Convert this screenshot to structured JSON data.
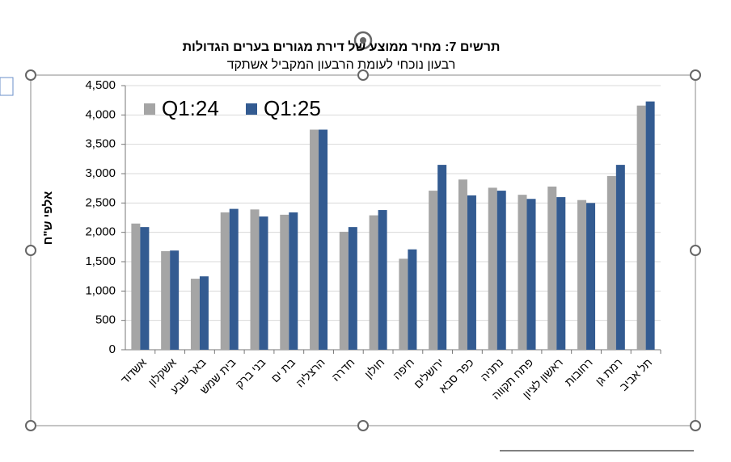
{
  "chart_data": {
    "type": "bar",
    "title": "תרשים 7: מחיר ממוצע של דירת מגורים בערים הגדולות",
    "subtitle": "רבעון נוכחי לעומת הרבעון המקביל אשתקד",
    "y_label": "אלפי ש\"ח",
    "categories": [
      "אשדוד",
      "אשקלון",
      "באר שבע",
      "בית שמש",
      "בני ברק",
      "בת ים",
      "הרצליה",
      "חדרה",
      "חולון",
      "חיפה",
      "ירושלים",
      "כפר סבא",
      "נתניה",
      "פתח תקווה",
      "ראשון לציון",
      "רחובות",
      "רמת גן",
      "תל אביב"
    ],
    "series": [
      {
        "name": "Q1:24",
        "color": "#a5a5a5",
        "values": [
          2150,
          1680,
          1210,
          2340,
          2390,
          2300,
          3750,
          2010,
          2290,
          1550,
          2710,
          2900,
          2760,
          2640,
          2780,
          2550,
          2960,
          4160
        ]
      },
      {
        "name": "Q1:25",
        "color": "#335b91",
        "values": [
          2090,
          1690,
          1250,
          2400,
          2270,
          2340,
          3750,
          2090,
          2380,
          1710,
          3150,
          2630,
          2710,
          2570,
          2600,
          2500,
          3150,
          4230
        ]
      }
    ],
    "ylim": [
      0,
      4500
    ],
    "yticks": [
      0,
      500,
      {
        "value": 1000,
        "label": "1,000"
      },
      {
        "value": 1500,
        "label": "1,500"
      },
      {
        "value": 2000,
        "label": "2,000"
      },
      {
        "value": 2500,
        "label": "2,500"
      },
      {
        "value": 3000,
        "label": "3,000"
      },
      {
        "value": 3500,
        "label": "3,500"
      },
      {
        "value": 4000,
        "label": "4,000"
      },
      {
        "value": 4500,
        "label": "4,500"
      }
    ],
    "grid": true,
    "legend": "top-left"
  }
}
